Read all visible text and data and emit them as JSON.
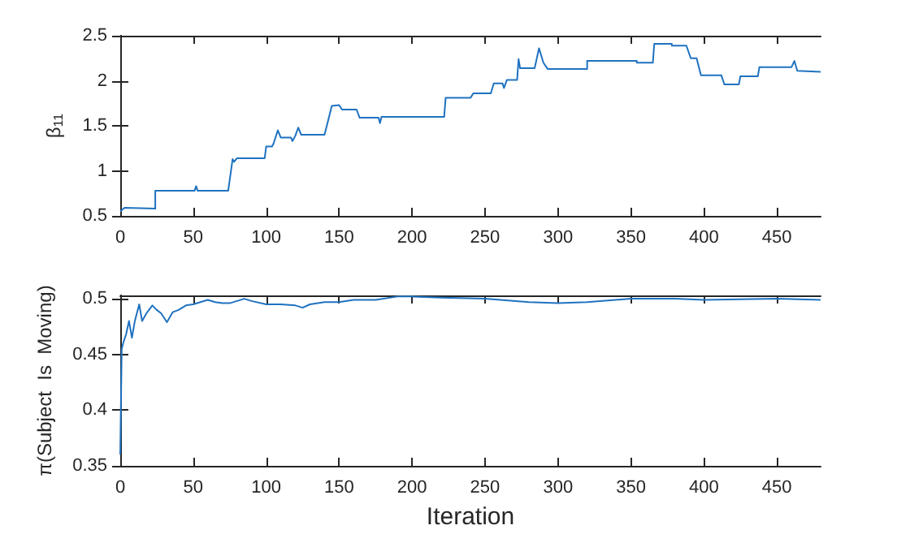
{
  "chart_data": [
    {
      "type": "line",
      "ylabel": "β$_{11}$",
      "xlim": [
        0,
        480
      ],
      "xticks": [
        0,
        50,
        100,
        150,
        200,
        250,
        300,
        350,
        400,
        450
      ],
      "ylim": [
        0.5,
        2.5
      ],
      "yticks": [
        0.5,
        1,
        1.5,
        2,
        2.5
      ],
      "series": [
        {
          "color": "#1f72c0",
          "x": [
            0,
            3,
            24,
            24,
            51,
            52,
            53,
            74,
            77,
            78,
            80,
            99,
            100,
            104,
            105,
            108,
            110,
            117,
            118,
            120,
            122,
            124,
            140,
            145,
            150,
            152,
            162,
            164,
            177,
            178,
            179,
            222,
            223,
            240,
            242,
            254,
            256,
            262,
            263,
            265,
            272,
            273,
            274,
            284,
            287,
            290,
            293,
            320,
            320,
            354,
            354,
            365,
            366,
            378,
            378,
            388,
            391,
            395,
            398,
            412,
            414,
            424,
            425,
            437,
            438,
            460,
            462,
            464,
            480
          ],
          "values": [
            0.55,
            0.59,
            0.58,
            0.78,
            0.78,
            0.83,
            0.78,
            0.78,
            1.13,
            1.1,
            1.14,
            1.14,
            1.27,
            1.27,
            1.3,
            1.45,
            1.37,
            1.37,
            1.33,
            1.39,
            1.48,
            1.4,
            1.4,
            1.72,
            1.73,
            1.68,
            1.68,
            1.59,
            1.59,
            1.53,
            1.6,
            1.6,
            1.81,
            1.81,
            1.86,
            1.86,
            1.97,
            1.97,
            1.92,
            2.01,
            2.01,
            2.24,
            2.14,
            2.14,
            2.36,
            2.2,
            2.13,
            2.13,
            2.22,
            2.22,
            2.2,
            2.2,
            2.41,
            2.41,
            2.39,
            2.39,
            2.25,
            2.25,
            2.06,
            2.06,
            1.96,
            1.96,
            2.05,
            2.05,
            2.15,
            2.15,
            2.22,
            2.11,
            2.1
          ]
        }
      ]
    },
    {
      "type": "line",
      "ylabel": "π(Subject  Is  Moving)",
      "xlabel": "Iteration",
      "xlim": [
        0,
        480
      ],
      "xticks": [
        0,
        50,
        100,
        150,
        200,
        250,
        300,
        350,
        400,
        450
      ],
      "ylim": [
        0.35,
        0.503
      ],
      "yticks": [
        0.35,
        0.4,
        0.45,
        0.5
      ],
      "series": [
        {
          "color": "#1f72c0",
          "x": [
            0,
            1,
            2,
            4,
            6,
            8,
            10,
            13,
            15,
            18,
            22,
            25,
            28,
            32,
            36,
            40,
            45,
            50,
            55,
            60,
            65,
            70,
            75,
            80,
            85,
            90,
            100,
            110,
            120,
            125,
            130,
            140,
            150,
            160,
            175,
            190,
            200,
            220,
            250,
            280,
            300,
            320,
            350,
            380,
            400,
            450,
            480
          ],
          "values": [
            0.36,
            0.455,
            0.46,
            0.468,
            0.48,
            0.465,
            0.48,
            0.495,
            0.48,
            0.487,
            0.494,
            0.49,
            0.487,
            0.479,
            0.488,
            0.49,
            0.494,
            0.495,
            0.497,
            0.499,
            0.497,
            0.496,
            0.496,
            0.498,
            0.5,
            0.498,
            0.495,
            0.495,
            0.494,
            0.492,
            0.495,
            0.497,
            0.497,
            0.499,
            0.499,
            0.502,
            0.502,
            0.501,
            0.5,
            0.497,
            0.496,
            0.497,
            0.5,
            0.5,
            0.499,
            0.5,
            0.499
          ]
        }
      ]
    }
  ]
}
